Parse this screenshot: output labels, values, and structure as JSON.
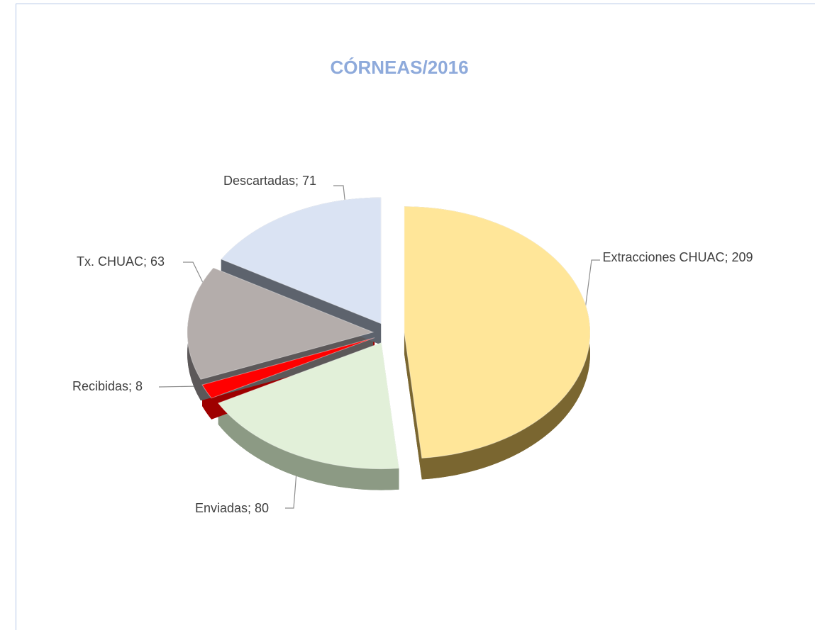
{
  "chart_data": {
    "type": "pie",
    "title": "CÓRNEAS/2016",
    "values": [
      209,
      80,
      8,
      63,
      71
    ],
    "value_labels": [
      "Extracciones CHUAC; 209",
      "Enviadas; 80",
      "Recibidas; 8",
      "Tx. CHUAC; 63",
      "Descartadas; 71"
    ],
    "colors": [
      "#ffe699",
      "#e2f0d9",
      "#ff0000",
      "#b4adab",
      "#dae3f3"
    ],
    "side_colors": [
      "#7a6630",
      "#8c9a84",
      "#9e0000",
      "#5c5859",
      "#5d636d"
    ]
  }
}
